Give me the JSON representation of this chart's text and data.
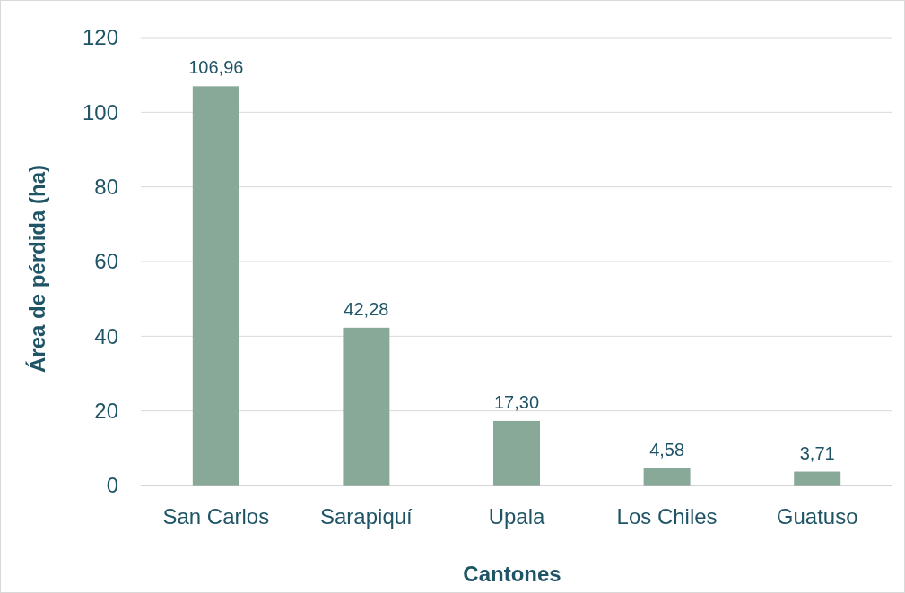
{
  "chart_data": {
    "type": "bar",
    "xlabel": "Cantones",
    "ylabel": "Área de pérdida (ha)",
    "categories": [
      "San Carlos",
      "Sarapiquí",
      "Upala",
      "Los Chiles",
      "Guatuso"
    ],
    "values": [
      106.96,
      42.28,
      17.3,
      4.58,
      3.71
    ],
    "value_labels": [
      "106,96",
      "42,28",
      "17,30",
      "4,58",
      "3,71"
    ],
    "color": "#88a898",
    "ylim": [
      0,
      120
    ],
    "yticks": [
      0,
      20,
      40,
      60,
      80,
      100,
      120
    ],
    "grid": "y"
  }
}
